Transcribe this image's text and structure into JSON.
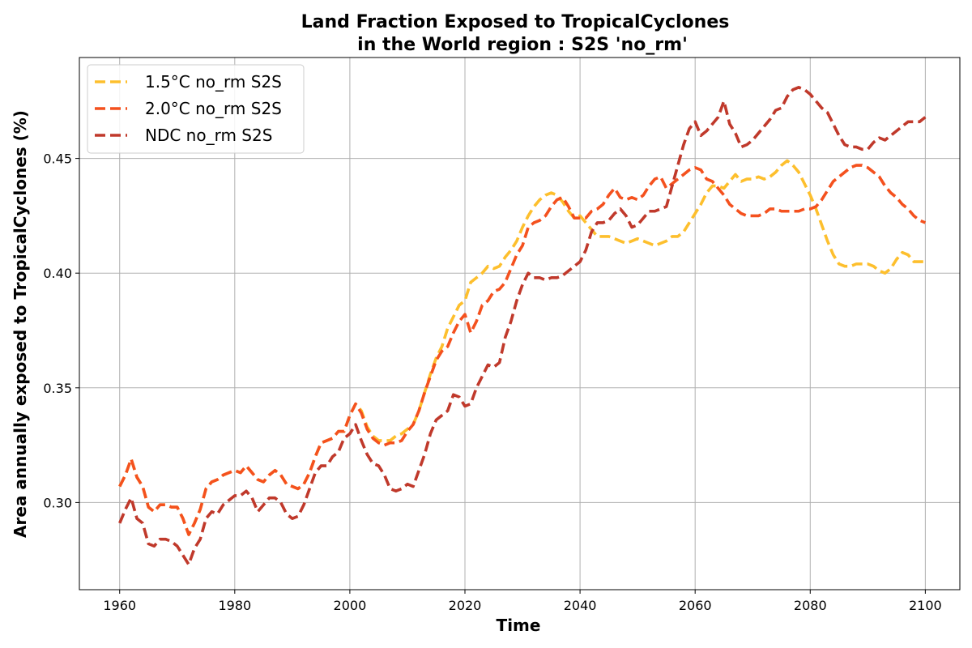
{
  "chart_data": {
    "type": "line",
    "title_line1": "Land Fraction Exposed to TropicalCyclones",
    "title_line2": "in the World region : S2S 'no_rm'",
    "xlabel": "Time",
    "ylabel": "Area annually exposed to TropicalCyclones (%)",
    "xlim": [
      1953,
      2106
    ],
    "ylim": [
      0.262,
      0.494
    ],
    "xticks": [
      1960,
      1980,
      2000,
      2020,
      2040,
      2060,
      2080,
      2100
    ],
    "yticks": [
      0.3,
      0.35,
      0.4,
      0.45
    ],
    "ytick_labels": [
      "0.30",
      "0.35",
      "0.40",
      "0.45"
    ],
    "grid": true,
    "legend_position": "upper-left",
    "series": [
      {
        "name": "1.5°C no_rm S2S",
        "color": "#fdbf2d",
        "style": "dashed",
        "x": [
          1960,
          1961,
          1962,
          1963,
          1964,
          1965,
          1966,
          1967,
          1968,
          1969,
          1970,
          1971,
          1972,
          1973,
          1974,
          1975,
          1976,
          1977,
          1978,
          1979,
          1980,
          1981,
          1982,
          1983,
          1984,
          1985,
          1986,
          1987,
          1988,
          1989,
          1990,
          1991,
          1992,
          1993,
          1994,
          1995,
          1996,
          1997,
          1998,
          1999,
          2000,
          2001,
          2002,
          2003,
          2004,
          2005,
          2006,
          2007,
          2008,
          2009,
          2010,
          2011,
          2012,
          2013,
          2014,
          2015,
          2016,
          2017,
          2018,
          2019,
          2020,
          2021,
          2022,
          2023,
          2024,
          2025,
          2026,
          2027,
          2028,
          2029,
          2030,
          2031,
          2032,
          2033,
          2034,
          2035,
          2036,
          2037,
          2038,
          2039,
          2040,
          2041,
          2042,
          2043,
          2044,
          2045,
          2046,
          2047,
          2048,
          2049,
          2050,
          2051,
          2052,
          2053,
          2054,
          2055,
          2056,
          2057,
          2058,
          2059,
          2060,
          2061,
          2062,
          2063,
          2064,
          2065,
          2066,
          2067,
          2068,
          2069,
          2070,
          2071,
          2072,
          2073,
          2074,
          2075,
          2076,
          2077,
          2078,
          2079,
          2080,
          2081,
          2082,
          2083,
          2084,
          2085,
          2086,
          2087,
          2088,
          2089,
          2090,
          2091,
          2092,
          2093,
          2094,
          2095,
          2096,
          2097,
          2098,
          2099,
          2100
        ],
        "y": [
          0.307,
          0.312,
          0.319,
          0.311,
          0.307,
          0.298,
          0.296,
          0.299,
          0.299,
          0.298,
          0.298,
          0.293,
          0.286,
          0.291,
          0.297,
          0.306,
          0.309,
          0.31,
          0.312,
          0.313,
          0.314,
          0.313,
          0.316,
          0.313,
          0.31,
          0.309,
          0.312,
          0.314,
          0.312,
          0.308,
          0.307,
          0.306,
          0.308,
          0.313,
          0.32,
          0.326,
          0.327,
          0.328,
          0.331,
          0.331,
          0.338,
          0.343,
          0.34,
          0.333,
          0.329,
          0.327,
          0.327,
          0.327,
          0.329,
          0.33,
          0.332,
          0.334,
          0.34,
          0.348,
          0.356,
          0.363,
          0.368,
          0.376,
          0.381,
          0.386,
          0.388,
          0.396,
          0.398,
          0.4,
          0.403,
          0.402,
          0.403,
          0.407,
          0.41,
          0.414,
          0.42,
          0.425,
          0.429,
          0.432,
          0.434,
          0.435,
          0.434,
          0.431,
          0.427,
          0.424,
          0.425,
          0.422,
          0.419,
          0.416,
          0.416,
          0.416,
          0.415,
          0.414,
          0.413,
          0.414,
          0.415,
          0.414,
          0.413,
          0.412,
          0.413,
          0.414,
          0.416,
          0.416,
          0.418,
          0.422,
          0.426,
          0.43,
          0.435,
          0.438,
          0.438,
          0.437,
          0.44,
          0.443,
          0.44,
          0.441,
          0.441,
          0.442,
          0.441,
          0.442,
          0.444,
          0.447,
          0.449,
          0.447,
          0.444,
          0.439,
          0.434,
          0.428,
          0.421,
          0.414,
          0.408,
          0.404,
          0.403,
          0.403,
          0.404,
          0.404,
          0.404,
          0.403,
          0.401,
          0.4,
          0.402,
          0.406,
          0.409,
          0.408,
          0.405,
          0.405,
          0.405
        ],
        "note": ""
      },
      {
        "name": "2.0°C no_rm S2S",
        "color": "#f4511e",
        "style": "dashed",
        "x": [
          1960,
          1961,
          1962,
          1963,
          1964,
          1965,
          1966,
          1967,
          1968,
          1969,
          1970,
          1971,
          1972,
          1973,
          1974,
          1975,
          1976,
          1977,
          1978,
          1979,
          1980,
          1981,
          1982,
          1983,
          1984,
          1985,
          1986,
          1987,
          1988,
          1989,
          1990,
          1991,
          1992,
          1993,
          1994,
          1995,
          1996,
          1997,
          1998,
          1999,
          2000,
          2001,
          2002,
          2003,
          2004,
          2005,
          2006,
          2007,
          2008,
          2009,
          2010,
          2011,
          2012,
          2013,
          2014,
          2015,
          2016,
          2017,
          2018,
          2019,
          2020,
          2021,
          2022,
          2023,
          2024,
          2025,
          2026,
          2027,
          2028,
          2029,
          2030,
          2031,
          2032,
          2033,
          2034,
          2035,
          2036,
          2037,
          2038,
          2039,
          2040,
          2041,
          2042,
          2043,
          2044,
          2045,
          2046,
          2047,
          2048,
          2049,
          2050,
          2051,
          2052,
          2053,
          2054,
          2055,
          2056,
          2057,
          2058,
          2059,
          2060,
          2061,
          2062,
          2063,
          2064,
          2065,
          2066,
          2067,
          2068,
          2069,
          2070,
          2071,
          2072,
          2073,
          2074,
          2075,
          2076,
          2077,
          2078,
          2079,
          2080,
          2081,
          2082,
          2083,
          2084,
          2085,
          2086,
          2087,
          2088,
          2089,
          2090,
          2091,
          2092,
          2093,
          2094,
          2095,
          2096,
          2097,
          2098,
          2099,
          2100
        ],
        "y": [
          0.307,
          0.312,
          0.319,
          0.311,
          0.307,
          0.298,
          0.296,
          0.299,
          0.299,
          0.298,
          0.298,
          0.293,
          0.286,
          0.291,
          0.297,
          0.306,
          0.309,
          0.31,
          0.312,
          0.313,
          0.314,
          0.313,
          0.316,
          0.313,
          0.31,
          0.309,
          0.312,
          0.314,
          0.312,
          0.308,
          0.307,
          0.306,
          0.308,
          0.313,
          0.32,
          0.326,
          0.327,
          0.328,
          0.331,
          0.331,
          0.338,
          0.343,
          0.339,
          0.332,
          0.328,
          0.326,
          0.325,
          0.326,
          0.326,
          0.327,
          0.331,
          0.334,
          0.34,
          0.348,
          0.355,
          0.362,
          0.366,
          0.368,
          0.374,
          0.379,
          0.382,
          0.374,
          0.379,
          0.386,
          0.388,
          0.392,
          0.393,
          0.396,
          0.402,
          0.408,
          0.412,
          0.42,
          0.422,
          0.423,
          0.425,
          0.429,
          0.432,
          0.433,
          0.429,
          0.424,
          0.424,
          0.424,
          0.427,
          0.428,
          0.43,
          0.434,
          0.437,
          0.433,
          0.432,
          0.433,
          0.432,
          0.434,
          0.438,
          0.441,
          0.442,
          0.437,
          0.439,
          0.441,
          0.443,
          0.445,
          0.446,
          0.445,
          0.441,
          0.44,
          0.437,
          0.434,
          0.43,
          0.428,
          0.426,
          0.425,
          0.425,
          0.425,
          0.426,
          0.428,
          0.428,
          0.427,
          0.427,
          0.427,
          0.427,
          0.428,
          0.428,
          0.429,
          0.432,
          0.436,
          0.44,
          0.442,
          0.444,
          0.446,
          0.447,
          0.447,
          0.446,
          0.444,
          0.442,
          0.438,
          0.435,
          0.433,
          0.43,
          0.428,
          0.425,
          0.423,
          0.422
        ]
      },
      {
        "name": "NDC no_rm S2S",
        "color": "#c0392b",
        "style": "dashed",
        "x": [
          1960,
          1961,
          1962,
          1963,
          1964,
          1965,
          1966,
          1967,
          1968,
          1969,
          1970,
          1971,
          1972,
          1973,
          1974,
          1975,
          1976,
          1977,
          1978,
          1979,
          1980,
          1981,
          1982,
          1983,
          1984,
          1985,
          1986,
          1987,
          1988,
          1989,
          1990,
          1991,
          1992,
          1993,
          1994,
          1995,
          1996,
          1997,
          1998,
          1999,
          2000,
          2001,
          2002,
          2003,
          2004,
          2005,
          2006,
          2007,
          2008,
          2009,
          2010,
          2011,
          2012,
          2013,
          2014,
          2015,
          2016,
          2017,
          2018,
          2019,
          2020,
          2021,
          2022,
          2023,
          2024,
          2025,
          2026,
          2027,
          2028,
          2029,
          2030,
          2031,
          2032,
          2033,
          2034,
          2035,
          2036,
          2037,
          2038,
          2039,
          2040,
          2041,
          2042,
          2043,
          2044,
          2045,
          2046,
          2047,
          2048,
          2049,
          2050,
          2051,
          2052,
          2053,
          2054,
          2055,
          2056,
          2057,
          2058,
          2059,
          2060,
          2061,
          2062,
          2063,
          2064,
          2065,
          2066,
          2067,
          2068,
          2069,
          2070,
          2071,
          2072,
          2073,
          2074,
          2075,
          2076,
          2077,
          2078,
          2079,
          2080,
          2081,
          2082,
          2083,
          2084,
          2085,
          2086,
          2087,
          2088,
          2089,
          2090,
          2091,
          2092,
          2093,
          2094,
          2095,
          2096,
          2097,
          2098,
          2099,
          2100
        ],
        "y": [
          0.291,
          0.297,
          0.302,
          0.293,
          0.291,
          0.282,
          0.281,
          0.284,
          0.284,
          0.283,
          0.281,
          0.277,
          0.273,
          0.28,
          0.284,
          0.293,
          0.296,
          0.295,
          0.299,
          0.301,
          0.303,
          0.303,
          0.305,
          0.302,
          0.296,
          0.299,
          0.302,
          0.302,
          0.3,
          0.295,
          0.293,
          0.294,
          0.299,
          0.306,
          0.313,
          0.316,
          0.316,
          0.32,
          0.322,
          0.328,
          0.33,
          0.334,
          0.327,
          0.321,
          0.317,
          0.316,
          0.312,
          0.306,
          0.305,
          0.306,
          0.308,
          0.307,
          0.314,
          0.321,
          0.33,
          0.336,
          0.338,
          0.34,
          0.347,
          0.346,
          0.342,
          0.343,
          0.35,
          0.355,
          0.36,
          0.359,
          0.361,
          0.372,
          0.379,
          0.388,
          0.395,
          0.4,
          0.398,
          0.398,
          0.397,
          0.398,
          0.398,
          0.399,
          0.401,
          0.403,
          0.405,
          0.41,
          0.418,
          0.422,
          0.422,
          0.423,
          0.426,
          0.428,
          0.425,
          0.42,
          0.421,
          0.424,
          0.427,
          0.427,
          0.428,
          0.429,
          0.438,
          0.447,
          0.456,
          0.463,
          0.466,
          0.46,
          0.462,
          0.465,
          0.468,
          0.475,
          0.465,
          0.461,
          0.455,
          0.456,
          0.458,
          0.461,
          0.464,
          0.467,
          0.471,
          0.472,
          0.477,
          0.48,
          0.481,
          0.48,
          0.478,
          0.475,
          0.472,
          0.47,
          0.465,
          0.46,
          0.456,
          0.455,
          0.455,
          0.454,
          0.454,
          0.457,
          0.459,
          0.458,
          0.46,
          0.462,
          0.464,
          0.466,
          0.466,
          0.466,
          0.468
        ]
      }
    ]
  }
}
